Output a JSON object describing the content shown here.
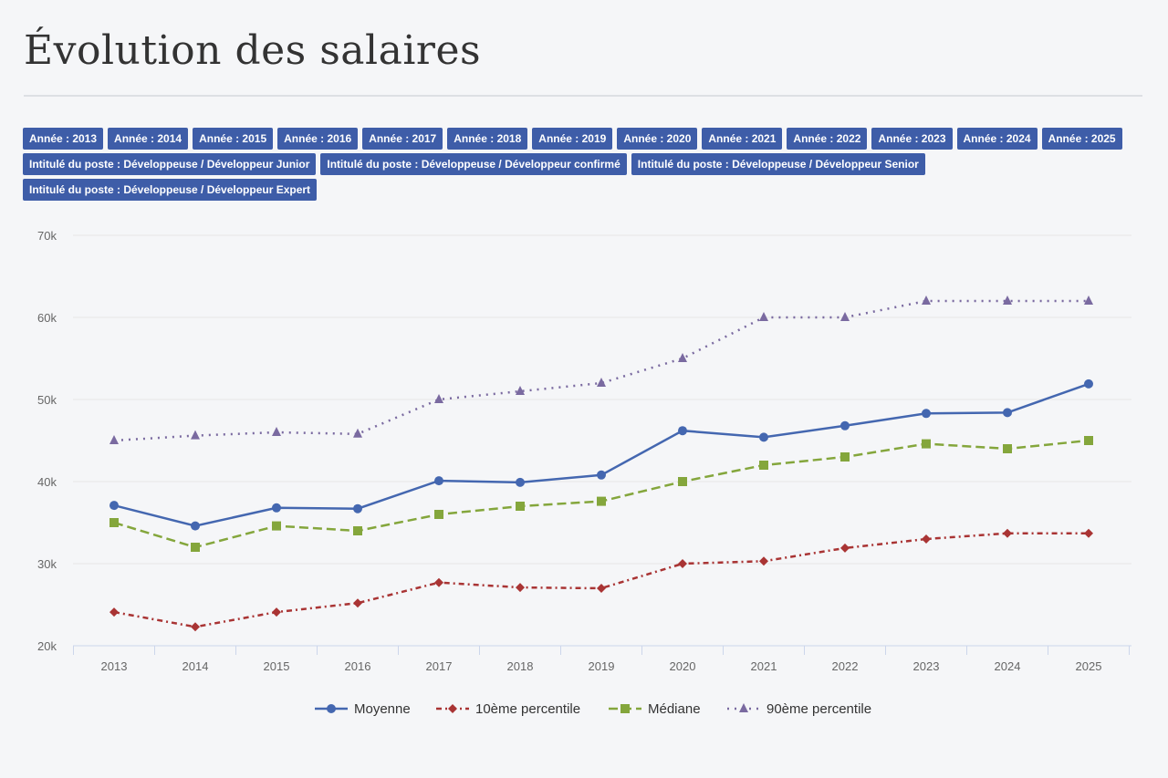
{
  "page": {
    "title": "Évolution des salaires"
  },
  "filters": [
    "Année : 2013",
    "Année : 2014",
    "Année : 2015",
    "Année : 2016",
    "Année : 2017",
    "Année : 2018",
    "Année : 2019",
    "Année : 2020",
    "Année : 2021",
    "Année : 2022",
    "Année : 2023",
    "Année : 2024",
    "Année : 2025",
    "Intitulé du poste : Développeuse / Développeur Junior",
    "Intitulé du poste : Développeuse / Développeur confirmé",
    "Intitulé du poste : Développeuse / Développeur Senior",
    "Intitulé du poste : Développeuse / Développeur Expert"
  ],
  "chart_data": {
    "type": "line",
    "title": "",
    "xlabel": "",
    "ylabel": "",
    "categories": [
      "2013",
      "2014",
      "2015",
      "2016",
      "2017",
      "2018",
      "2019",
      "2020",
      "2021",
      "2022",
      "2023",
      "2024",
      "2025"
    ],
    "ylim": [
      20000,
      70000
    ],
    "yticks": [
      20000,
      30000,
      40000,
      50000,
      60000,
      70000
    ],
    "ytick_labels": [
      "20k",
      "30k",
      "40k",
      "50k",
      "60k",
      "70k"
    ],
    "grid": true,
    "legend_position": "bottom",
    "series": [
      {
        "name": "Moyenne",
        "color": "#4467b0",
        "marker": "circle",
        "dash": "solid",
        "values": [
          37100,
          34600,
          36800,
          36700,
          40100,
          39900,
          40800,
          46200,
          45400,
          46800,
          48300,
          48400,
          51900
        ]
      },
      {
        "name": "10ème percentile",
        "color": "#a93434",
        "marker": "diamond",
        "dash": "dashdot",
        "values": [
          24100,
          22300,
          24100,
          25200,
          27700,
          27100,
          27000,
          30000,
          30300,
          31900,
          33000,
          33700,
          33700
        ]
      },
      {
        "name": "Médiane",
        "color": "#84a63c",
        "marker": "square",
        "dash": "dash",
        "values": [
          35000,
          32000,
          34600,
          34000,
          36000,
          37000,
          37600,
          40000,
          42000,
          43000,
          44600,
          44000,
          45000
        ]
      },
      {
        "name": "90ème percentile",
        "color": "#7a6aa0",
        "marker": "triangle",
        "dash": "dot",
        "values": [
          45000,
          45600,
          46000,
          45800,
          50000,
          51000,
          52000,
          55000,
          60000,
          60000,
          62000,
          62000,
          62000
        ]
      }
    ]
  }
}
